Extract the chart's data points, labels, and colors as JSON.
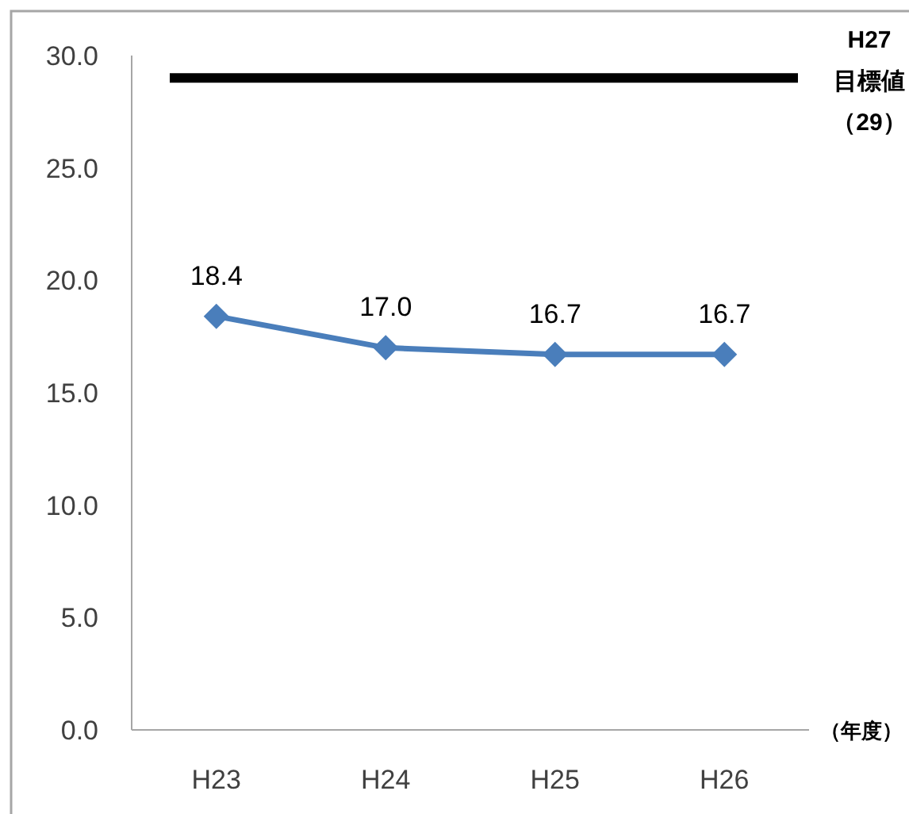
{
  "chart_data": {
    "type": "line",
    "xlabel": "（年度）",
    "categories": [
      "H23",
      "H24",
      "H25",
      "H26"
    ],
    "series": [
      {
        "color": "#4a7ebb",
        "values": [
          18.4,
          17.0,
          16.7,
          16.7
        ],
        "value_labels": [
          "18.4",
          "17.0",
          "16.7",
          "16.7"
        ]
      }
    ],
    "ylim": [
      0,
      30
    ],
    "yticks": [
      {
        "value": 0,
        "label": "0.0"
      },
      {
        "value": 5,
        "label": "5.0"
      },
      {
        "value": 10,
        "label": "10.0"
      },
      {
        "value": 15,
        "label": "15.0"
      },
      {
        "value": 20,
        "label": "20.0"
      },
      {
        "value": 25,
        "label": "25.0"
      },
      {
        "value": 30,
        "label": "30.0"
      }
    ],
    "marker": "diamond",
    "line_style": "solid",
    "grid": false,
    "ref_lines": [
      {
        "axis": "y",
        "value": 29,
        "label": "H27\n目標値（29）",
        "color": "#000000"
      }
    ]
  }
}
